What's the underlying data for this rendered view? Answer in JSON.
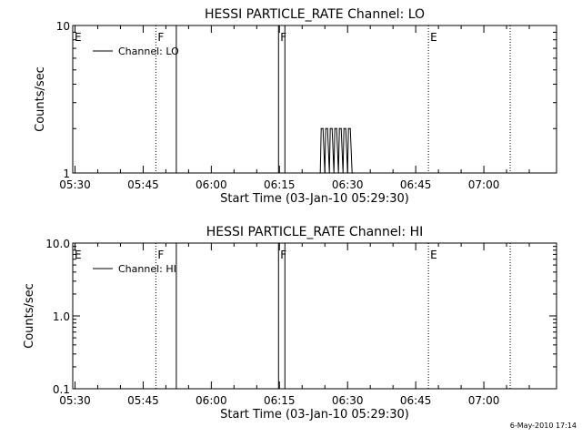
{
  "timestamp": "6-May-2010 17:14",
  "chart_data": [
    {
      "type": "line",
      "title": "HESSI PARTICLE_RATE Channel: LO",
      "xlabel": "Start Time (03-Jan-10 05:29:30)",
      "ylabel": "Counts/sec",
      "x_tick_labels": [
        "05:30",
        "05:45",
        "06:00",
        "06:15",
        "06:30",
        "06:45",
        "07:00"
      ],
      "x_tick_minutes": [
        30,
        45,
        60,
        75,
        90,
        105,
        120
      ],
      "xlim_minutes": [
        29.5,
        136.0
      ],
      "y_scale": "log",
      "y_ticks": [
        1,
        10
      ],
      "y_tick_labels": [
        "1",
        "10"
      ],
      "ylim": [
        1,
        10
      ],
      "legend": {
        "label": "Channel: LO",
        "placement": "top-left"
      },
      "flags": [
        {
          "label": "E",
          "minute": 29.5,
          "style": "none"
        },
        {
          "label": "F",
          "minute": 47.8,
          "style": "dotted"
        },
        {
          "label": "",
          "minute": 52.3,
          "style": "solid"
        },
        {
          "label": "F",
          "minute": 74.8,
          "style": "solid"
        },
        {
          "label": "",
          "minute": 76.2,
          "style": "solid"
        },
        {
          "label": "E",
          "minute": 107.8,
          "style": "dotted"
        },
        {
          "label": "",
          "minute": 125.8,
          "style": "dotted"
        }
      ],
      "series": [
        {
          "x_minutes": [
            84.0,
            84.2,
            84.6,
            85.0,
            85.2,
            85.6,
            86.0,
            86.2,
            86.6,
            87.0,
            87.2,
            87.6,
            88.0,
            88.2,
            88.6,
            89.0,
            89.2,
            89.6,
            90.0,
            90.2,
            90.6,
            91.0,
            91.2
          ],
          "values": [
            1,
            2,
            2,
            1,
            2,
            2,
            1,
            2,
            2,
            1,
            2,
            2,
            1,
            2,
            2,
            1,
            2,
            2,
            1,
            2,
            2,
            1,
            1
          ]
        }
      ]
    },
    {
      "type": "line",
      "title": "HESSI PARTICLE_RATE Channel: HI",
      "xlabel": "Start Time (03-Jan-10 05:29:30)",
      "ylabel": "Counts/sec",
      "x_tick_labels": [
        "05:30",
        "05:45",
        "06:00",
        "06:15",
        "06:30",
        "06:45",
        "07:00"
      ],
      "x_tick_minutes": [
        30,
        45,
        60,
        75,
        90,
        105,
        120
      ],
      "xlim_minutes": [
        29.5,
        136.0
      ],
      "y_scale": "log",
      "y_ticks": [
        0.1,
        1.0,
        10.0
      ],
      "y_tick_labels": [
        "0.1",
        "1.0",
        "10.0"
      ],
      "ylim": [
        0.1,
        10
      ],
      "legend": {
        "label": "Channel: HI",
        "placement": "top-left"
      },
      "flags": [
        {
          "label": "E",
          "minute": 29.5,
          "style": "none"
        },
        {
          "label": "F",
          "minute": 47.8,
          "style": "dotted"
        },
        {
          "label": "",
          "minute": 52.3,
          "style": "solid"
        },
        {
          "label": "F",
          "minute": 74.8,
          "style": "solid"
        },
        {
          "label": "",
          "minute": 76.2,
          "style": "solid"
        },
        {
          "label": "E",
          "minute": 107.8,
          "style": "dotted"
        },
        {
          "label": "",
          "minute": 125.8,
          "style": "dotted"
        }
      ],
      "series": [
        {
          "x_minutes": [],
          "values": []
        }
      ]
    }
  ]
}
